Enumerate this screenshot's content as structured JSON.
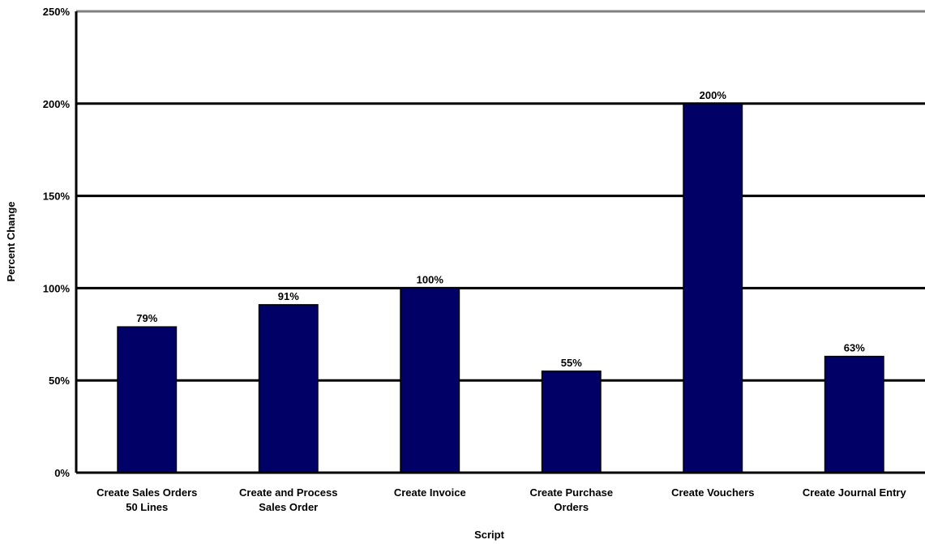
{
  "chart_data": {
    "type": "bar",
    "title": "",
    "xlabel": "Script",
    "ylabel": "Percent Change",
    "categories": [
      [
        "Create Sales Orders",
        "50 Lines"
      ],
      [
        "Create and Process",
        "Sales Order"
      ],
      [
        "Create Invoice"
      ],
      [
        "Create Purchase",
        "Orders"
      ],
      [
        "Create Vouchers"
      ],
      [
        "Create Journal Entry"
      ]
    ],
    "values": [
      79,
      91,
      100,
      55,
      200,
      63
    ],
    "data_labels": [
      "79%",
      "91%",
      "100%",
      "55%",
      "200%",
      "63%"
    ],
    "ylim": [
      0,
      250
    ],
    "yticks": [
      0,
      50,
      100,
      150,
      200,
      250
    ],
    "ytick_labels": [
      "0%",
      "50%",
      "100%",
      "150%",
      "200%",
      "250%"
    ],
    "grid": true,
    "legend": "none",
    "colors": {
      "bar": "#000066",
      "bar_edge": "#000000",
      "grid": "#000000",
      "top_border": "#808080",
      "axis": "#000000"
    }
  }
}
